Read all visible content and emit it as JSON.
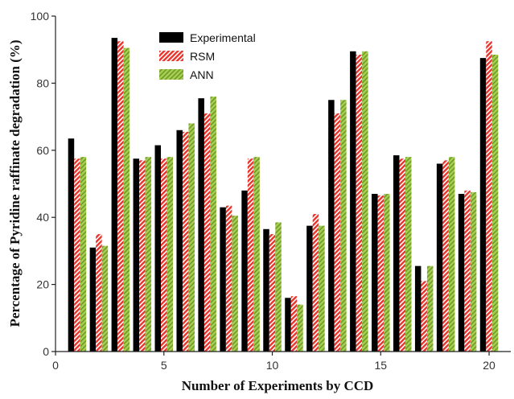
{
  "chart_data": {
    "type": "bar",
    "title": "",
    "xlabel": "Number of Experiments by CCD",
    "ylabel": "Percentage of Pyridine raffinate degradation (%)",
    "xlim": [
      0,
      21
    ],
    "ylim": [
      0,
      100
    ],
    "x_ticks": [
      0,
      5,
      10,
      15,
      20
    ],
    "y_ticks": [
      0,
      20,
      40,
      60,
      80,
      100
    ],
    "legend_position": "top-left",
    "x": [
      1,
      2,
      3,
      4,
      5,
      6,
      7,
      8,
      9,
      10,
      11,
      12,
      13,
      14,
      15,
      16,
      17,
      18,
      19,
      20
    ],
    "series": [
      {
        "name": "Experimental",
        "color": "#000000",
        "pattern": "solid",
        "values": [
          63.5,
          31,
          93.5,
          57.5,
          61.5,
          66,
          75.5,
          43,
          48,
          36.5,
          16,
          37.5,
          75,
          89.5,
          47,
          58.5,
          25.5,
          56,
          47,
          87.5
        ]
      },
      {
        "name": "RSM",
        "color": "#e8332a",
        "pattern": "diagonal-stripe",
        "values": [
          57.5,
          35,
          92.5,
          57,
          57.5,
          65.5,
          71,
          43.5,
          57.5,
          35,
          16.5,
          41,
          71,
          88.5,
          46.5,
          57.5,
          21,
          57,
          48,
          92.5
        ]
      },
      {
        "name": "ANN",
        "color": "#8db83a",
        "pattern": "diagonal-stripe",
        "values": [
          58,
          31.5,
          90.5,
          58,
          58,
          68,
          76,
          40.5,
          58,
          38.5,
          14,
          37.5,
          75,
          89.5,
          47,
          58,
          25.5,
          58,
          47.5,
          88.5
        ]
      }
    ]
  }
}
